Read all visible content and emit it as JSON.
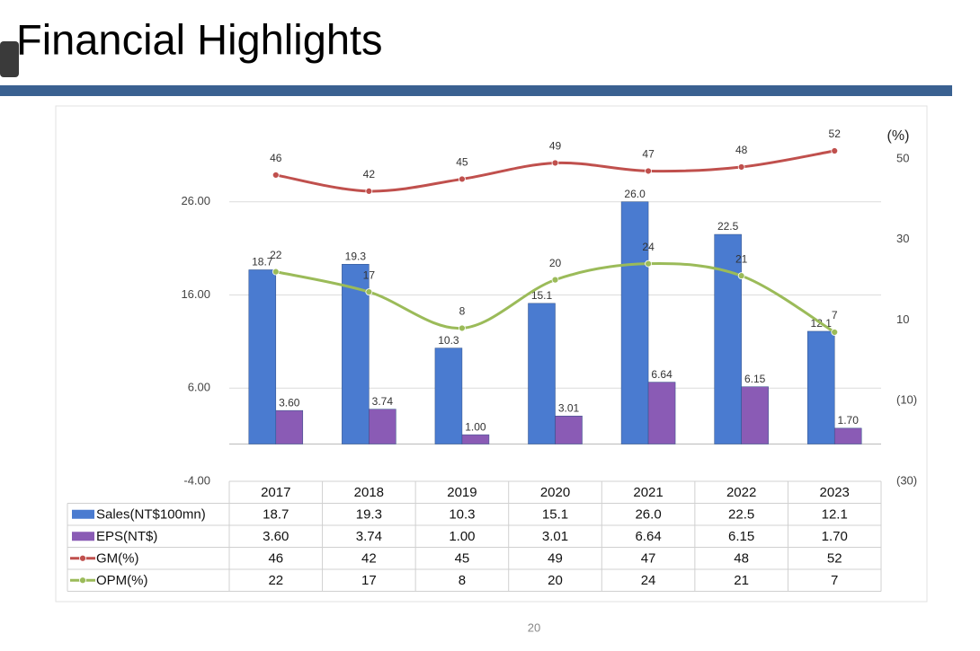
{
  "header": {
    "title": "Financial Highlights"
  },
  "chart_data": {
    "type": "bar",
    "categories": [
      "2017",
      "2018",
      "2019",
      "2020",
      "2021",
      "2022",
      "2023"
    ],
    "series": [
      {
        "name": "Sales(NT$100mn)",
        "type": "bar",
        "color": "#4a7bd0",
        "values": [
          18.7,
          19.3,
          10.3,
          15.1,
          26.0,
          22.5,
          12.1
        ],
        "value_labels": [
          "18.7",
          "19.3",
          "10.3",
          "15.1",
          "26.0",
          "22.5",
          "12.1"
        ]
      },
      {
        "name": "EPS(NT$)",
        "type": "bar",
        "color": "#8a5bb5",
        "values": [
          3.6,
          3.74,
          1.0,
          3.01,
          6.64,
          6.15,
          1.7
        ],
        "value_labels": [
          "3.60",
          "3.74",
          "1.00",
          "3.01",
          "6.64",
          "6.15",
          "1.70"
        ]
      },
      {
        "name": "GM(%)",
        "type": "line",
        "axis": "y2",
        "color": "#c0504d",
        "values": [
          46,
          42,
          45,
          49,
          47,
          48,
          52
        ]
      },
      {
        "name": "OPM(%)",
        "type": "line",
        "axis": "y2",
        "color": "#9bbb59",
        "values": [
          22,
          17,
          8,
          20,
          24,
          21,
          7
        ]
      }
    ],
    "ylim": [
      -4,
      30.6
    ],
    "yticks": [
      {
        "value": -4,
        "label": "-4.00"
      },
      {
        "value": 6,
        "label": "6.00"
      },
      {
        "value": 16,
        "label": "16.00"
      },
      {
        "value": 26,
        "label": "26.00"
      }
    ],
    "y2label": "(%)",
    "y2lim": [
      -30,
      50
    ],
    "y2ticks": [
      {
        "value": -30,
        "label": "(30)"
      },
      {
        "value": -10,
        "label": "(10)"
      },
      10,
      30,
      50
    ],
    "grid": true
  },
  "footer": {
    "page_number": "20"
  }
}
